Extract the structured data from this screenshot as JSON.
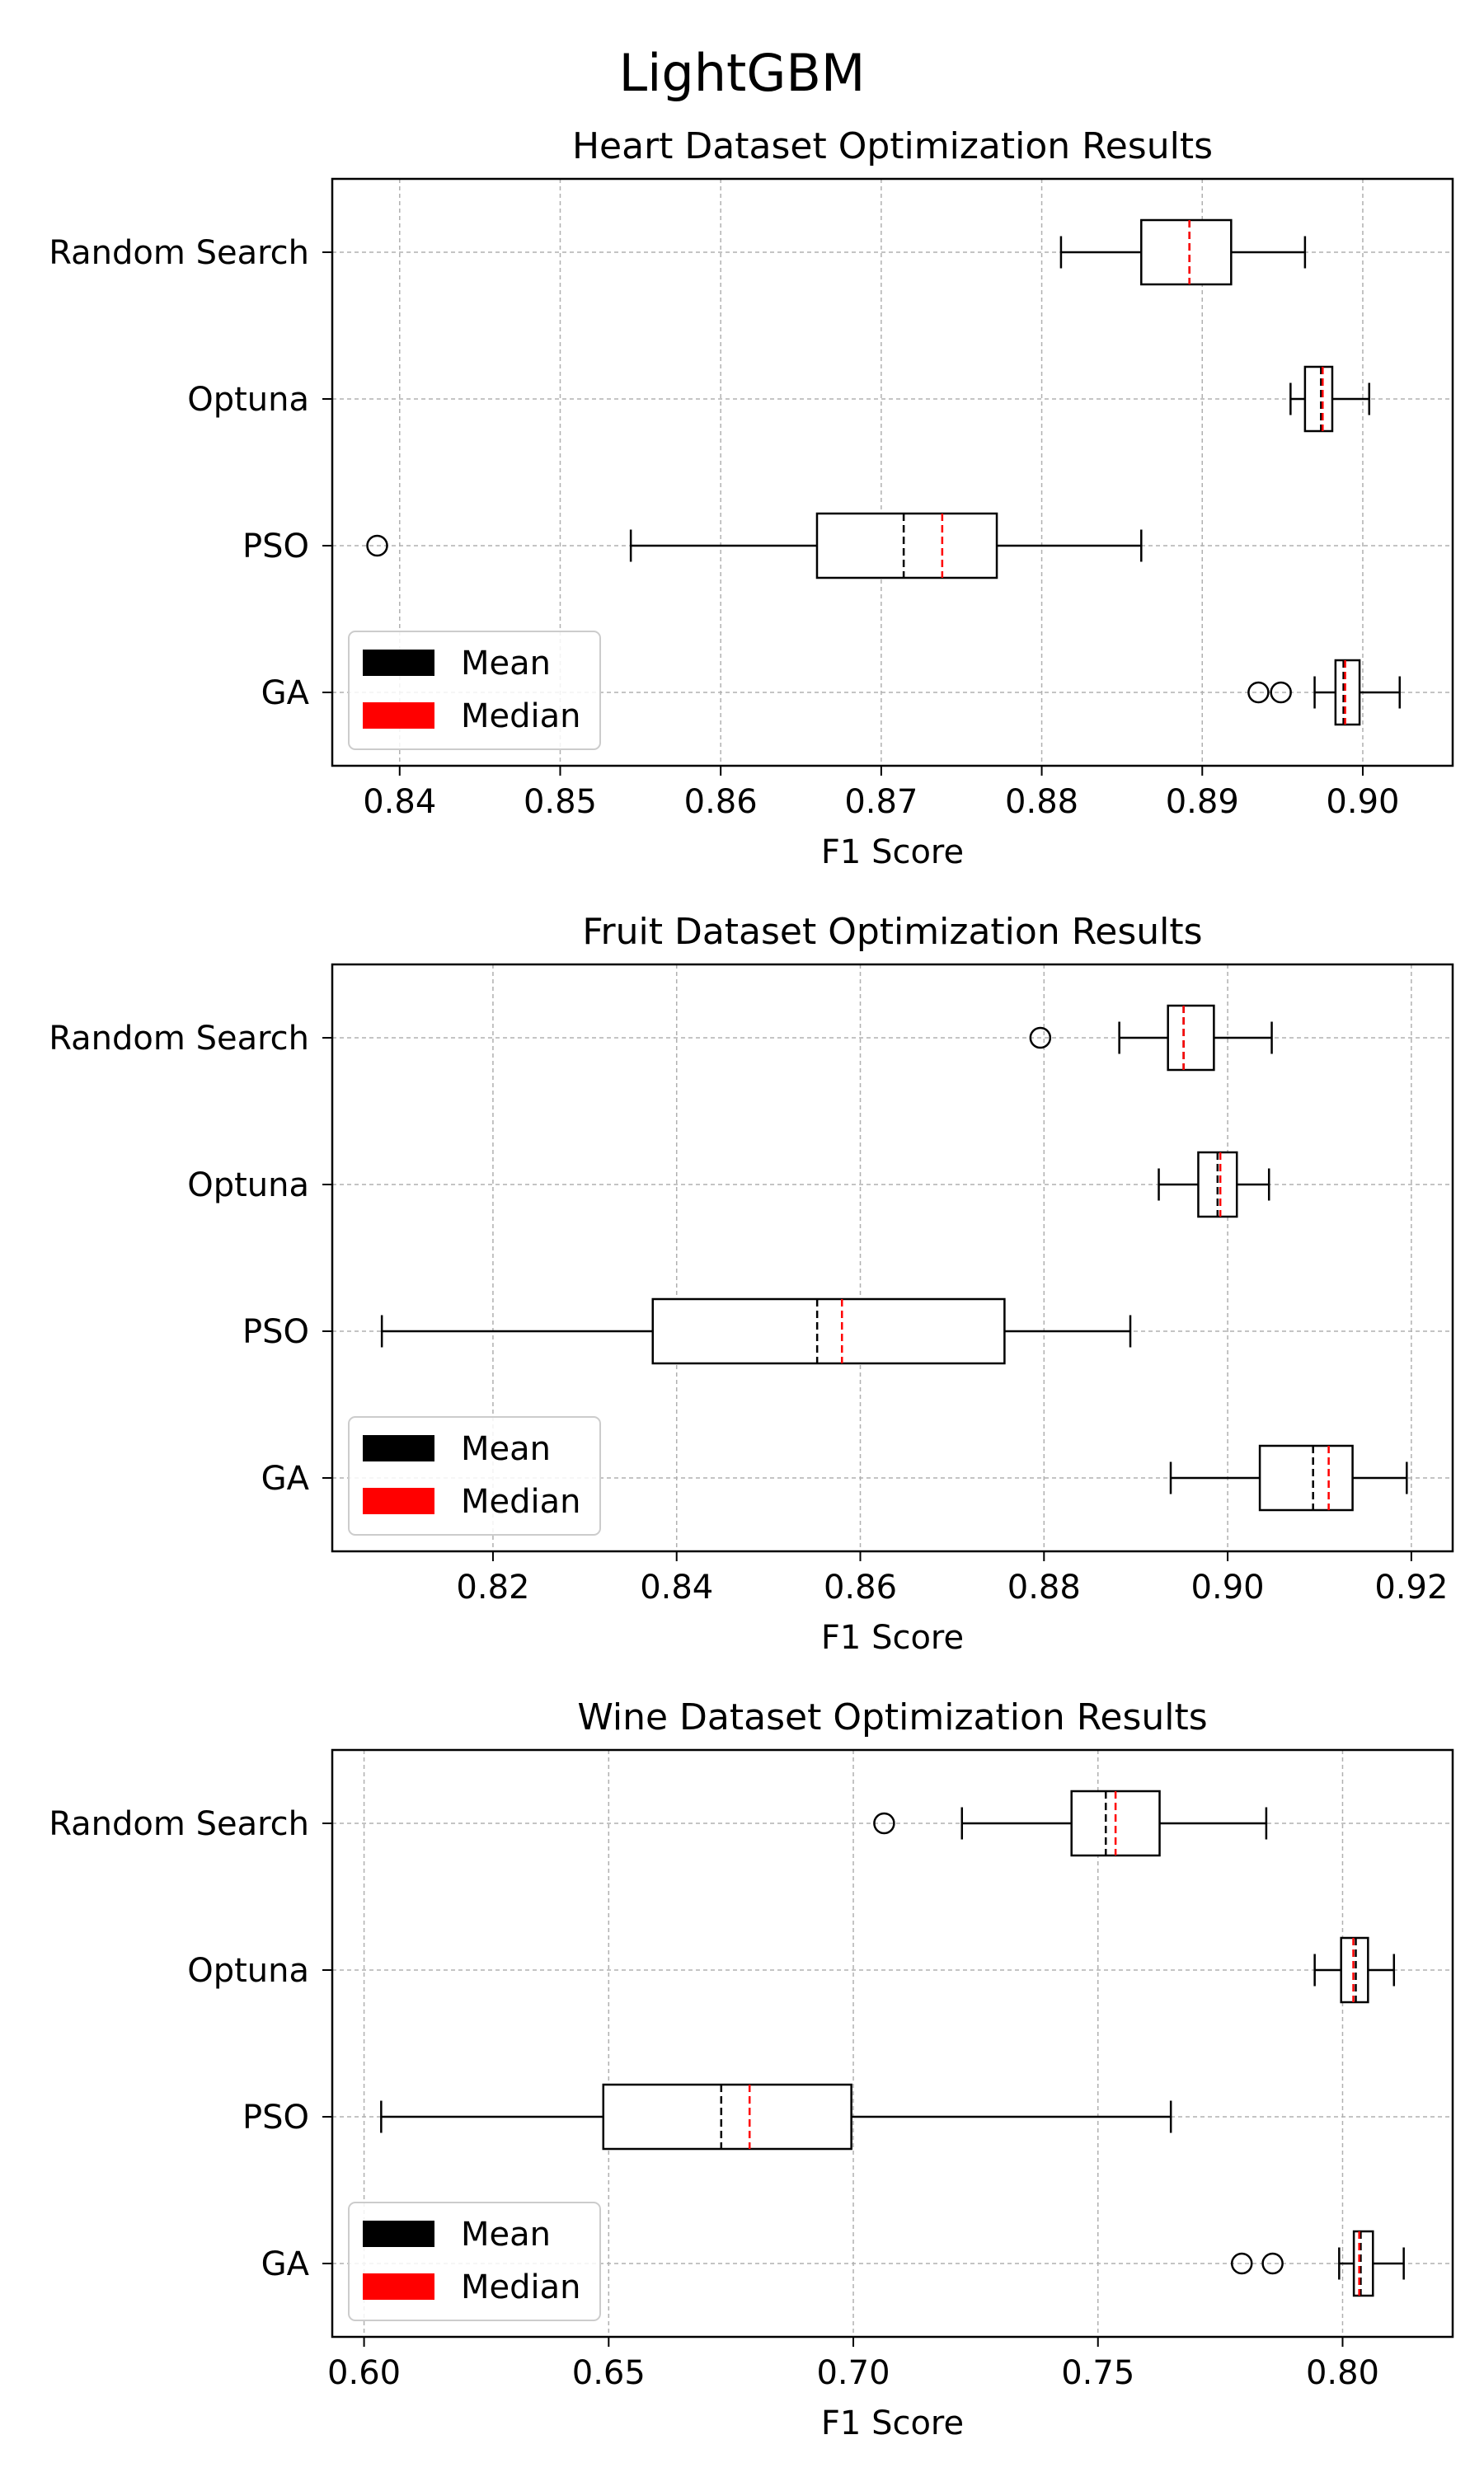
{
  "figure": {
    "title": "LightGBM"
  },
  "legend": {
    "mean_label": "Mean",
    "median_label": "Median",
    "mean_color": "#000000",
    "median_color": "#ff0000",
    "placement": "lower left"
  },
  "chart_data": [
    {
      "type": "box",
      "orientation": "horizontal",
      "title": "Heart Dataset Optimization Results",
      "xlabel": "F1 Score",
      "ylabel": "",
      "xlim": [
        0.8358,
        0.9056
      ],
      "xticks": [
        0.84,
        0.85,
        0.86,
        0.87,
        0.88,
        0.89,
        0.9
      ],
      "xtick_labels": [
        "0.84",
        "0.85",
        "0.86",
        "0.87",
        "0.88",
        "0.89",
        "0.90"
      ],
      "grid": true,
      "legend": "lower left",
      "categories": [
        "Random Search",
        "Optuna",
        "PSO",
        "GA"
      ],
      "boxes": [
        {
          "name": "Random Search",
          "whislo": 0.8812,
          "q1": 0.8862,
          "median": 0.8892,
          "mean": 0.8892,
          "q3": 0.8918,
          "whishi": 0.8964,
          "fliers": []
        },
        {
          "name": "Optuna",
          "whislo": 0.8955,
          "q1": 0.8964,
          "median": 0.8975,
          "mean": 0.8974,
          "q3": 0.8981,
          "whishi": 0.9004,
          "fliers": []
        },
        {
          "name": "PSO",
          "whislo": 0.8544,
          "q1": 0.866,
          "median": 0.8738,
          "mean": 0.8714,
          "q3": 0.8772,
          "whishi": 0.8862,
          "fliers": [
            0.8386
          ]
        },
        {
          "name": "GA",
          "whislo": 0.897,
          "q1": 0.8983,
          "median": 0.8989,
          "mean": 0.8988,
          "q3": 0.8998,
          "whishi": 0.9023,
          "fliers": [
            0.8935,
            0.8949
          ]
        }
      ]
    },
    {
      "type": "box",
      "orientation": "horizontal",
      "title": "Fruit Dataset Optimization Results",
      "xlabel": "F1 Score",
      "ylabel": "",
      "xlim": [
        0.8025,
        0.9245
      ],
      "xticks": [
        0.82,
        0.84,
        0.86,
        0.88,
        0.9,
        0.92
      ],
      "xtick_labels": [
        "0.82",
        "0.84",
        "0.86",
        "0.88",
        "0.90",
        "0.92"
      ],
      "grid": true,
      "legend": "lower left",
      "categories": [
        "Random Search",
        "Optuna",
        "PSO",
        "GA"
      ],
      "boxes": [
        {
          "name": "Random Search",
          "whislo": 0.8882,
          "q1": 0.8935,
          "median": 0.8952,
          "mean": 0.8952,
          "q3": 0.8985,
          "whishi": 0.9048,
          "fliers": [
            0.8796
          ]
        },
        {
          "name": "Optuna",
          "whislo": 0.8925,
          "q1": 0.8968,
          "median": 0.8992,
          "mean": 0.8989,
          "q3": 0.901,
          "whishi": 0.9045,
          "fliers": []
        },
        {
          "name": "PSO",
          "whislo": 0.8079,
          "q1": 0.8374,
          "median": 0.858,
          "mean": 0.8553,
          "q3": 0.8757,
          "whishi": 0.8894,
          "fliers": []
        },
        {
          "name": "GA",
          "whislo": 0.8938,
          "q1": 0.9035,
          "median": 0.911,
          "mean": 0.9093,
          "q3": 0.9136,
          "whishi": 0.9195,
          "fliers": []
        }
      ]
    },
    {
      "type": "box",
      "orientation": "horizontal",
      "title": "Wine Dataset Optimization Results",
      "xlabel": "F1 Score",
      "ylabel": "",
      "xlim": [
        0.5935,
        0.8225
      ],
      "xticks": [
        0.6,
        0.65,
        0.7,
        0.75,
        0.8
      ],
      "xtick_labels": [
        "0.60",
        "0.65",
        "0.70",
        "0.75",
        "0.80"
      ],
      "grid": true,
      "legend": "lower left",
      "categories": [
        "Random Search",
        "Optuna",
        "PSO",
        "GA"
      ],
      "boxes": [
        {
          "name": "Random Search",
          "whislo": 0.7222,
          "q1": 0.7446,
          "median": 0.7536,
          "mean": 0.7516,
          "q3": 0.7626,
          "whishi": 0.7844,
          "fliers": [
            0.7063
          ]
        },
        {
          "name": "Optuna",
          "whislo": 0.7943,
          "q1": 0.7997,
          "median": 0.8022,
          "mean": 0.8027,
          "q3": 0.8052,
          "whishi": 0.8105,
          "fliers": []
        },
        {
          "name": "PSO",
          "whislo": 0.6035,
          "q1": 0.6489,
          "median": 0.6788,
          "mean": 0.673,
          "q3": 0.6996,
          "whishi": 0.7649,
          "fliers": []
        },
        {
          "name": "GA",
          "whislo": 0.7993,
          "q1": 0.8023,
          "median": 0.8034,
          "mean": 0.8037,
          "q3": 0.8062,
          "whishi": 0.8125,
          "fliers": [
            0.7794,
            0.7857
          ]
        }
      ]
    }
  ]
}
